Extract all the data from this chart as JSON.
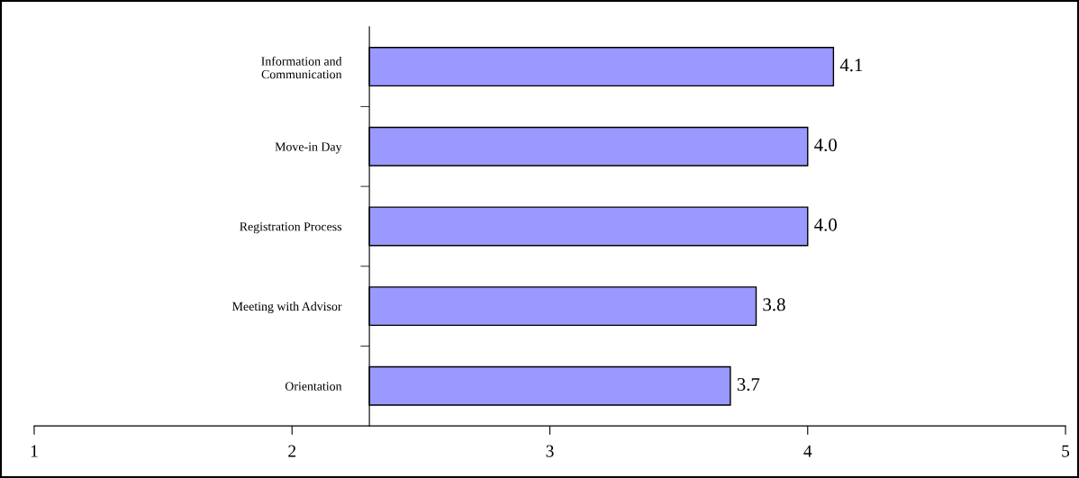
{
  "chart_data": {
    "type": "bar",
    "orientation": "horizontal",
    "categories": [
      "Information and\nCommunication",
      "Move-in Day",
      "Registration Process",
      "Meeting with Advisor",
      "Orientation"
    ],
    "base": [
      2.3,
      2.3,
      2.3,
      2.3,
      2.3
    ],
    "values": [
      1.8,
      1.7,
      1.7,
      1.5,
      1.4
    ],
    "value_labels": [
      "4.1",
      "4.0",
      "4.0",
      "3.8",
      "3.7"
    ],
    "color": "#9999ff",
    "xlim": [
      1,
      5
    ],
    "xticks": [
      1,
      2,
      3,
      4,
      5
    ],
    "grid": false,
    "legend": false
  }
}
